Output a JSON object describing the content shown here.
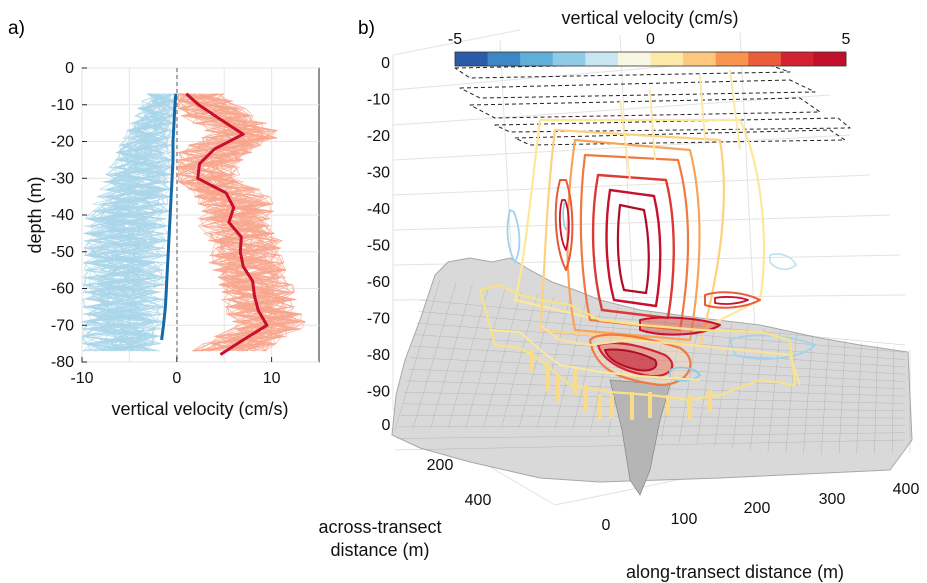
{
  "colors": {
    "positive_thin": "#f8a58c",
    "negative_thin": "#a9d6ea",
    "positive_mean": "#c8102e",
    "negative_mean": "#1469a8",
    "bathymetry": "#bdbdbd",
    "grid": "#e6e6e6"
  },
  "chart_data": [
    {
      "panel_label": "a)",
      "type": "line",
      "xlabel": "vertical velocity (cm/s)",
      "ylabel": "depth (m)",
      "xlim": [
        -10,
        15
      ],
      "ylim": [
        -80,
        0
      ],
      "x_ticks": [
        "-10",
        "0",
        "10"
      ],
      "y_ticks": [
        "0",
        "-10",
        "-20",
        "-30",
        "-40",
        "-50",
        "-60",
        "-70",
        "-80"
      ],
      "grid": true,
      "series": [
        {
          "style": "mean-downwelling",
          "depth": [
            -7,
            -10,
            -15,
            -20,
            -25,
            -30,
            -35,
            -40,
            -45,
            -50,
            -55,
            -60,
            -65,
            -70,
            -74
          ],
          "velocity": [
            -0.1,
            -0.2,
            -0.3,
            -0.4,
            -0.4,
            -0.5,
            -0.6,
            -0.7,
            -0.8,
            -0.9,
            -1.0,
            -1.1,
            -1.2,
            -1.4,
            -1.6
          ]
        },
        {
          "style": "mean-upwelling",
          "depth": [
            -7,
            -10,
            -14,
            -18,
            -22,
            -26,
            -30,
            -34,
            -38,
            -42,
            -46,
            -50,
            -54,
            -58,
            -62,
            -66,
            -70,
            -74,
            -78
          ],
          "velocity": [
            1.0,
            2.3,
            4.6,
            7.0,
            4.0,
            2.4,
            2.2,
            5.2,
            6.0,
            5.5,
            6.8,
            6.7,
            7.0,
            8.0,
            8.2,
            8.6,
            9.5,
            7.0,
            4.6
          ]
        }
      ]
    },
    {
      "panel_label": "b)",
      "type": "3d-contour",
      "colorbar_title": "vertical velocity (cm/s)",
      "colorbar_range": [
        -5,
        5
      ],
      "colorbar_ticks": [
        "-5",
        "0",
        "5"
      ],
      "colorbar_colors": [
        "#2b5aa8",
        "#3d87c4",
        "#5fafd9",
        "#8fcbe6",
        "#c7e6f1",
        "#f7f7e3",
        "#fde9a7",
        "#fdc77f",
        "#f7944f",
        "#ea5d3a",
        "#d32333",
        "#c0102c"
      ],
      "z_label": "",
      "z_ticks": [
        "0",
        "-10",
        "-20",
        "-30",
        "-40",
        "-50",
        "-60",
        "-70",
        "-80",
        "-90"
      ],
      "across_label": "across-transect\ndistance (m)",
      "across_ticks": [
        "0",
        "200",
        "400"
      ],
      "along_label": "along-transect distance (m)",
      "along_ticks": [
        "0",
        "100",
        "200",
        "300",
        "400"
      ]
    }
  ]
}
